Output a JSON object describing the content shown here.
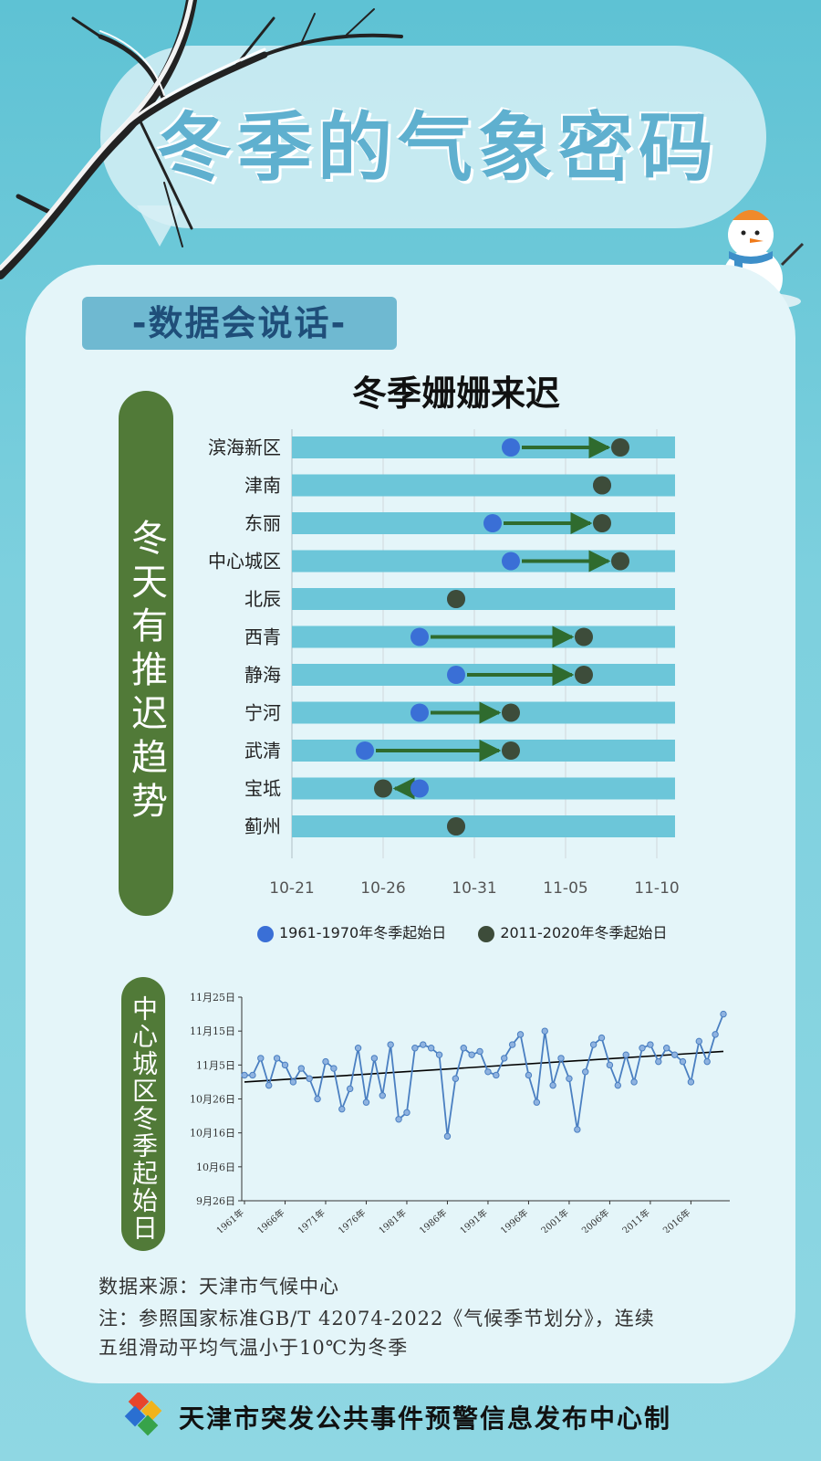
{
  "header": {
    "title": "冬季的气象密码"
  },
  "section_tag": "-数据会说话-",
  "side_label_1": "冬天有推迟趋势",
  "side_label_2": "中心城区冬季起始日",
  "chart_data": [
    {
      "type": "scatter",
      "title": "冬季姗姗来迟",
      "categories": [
        "滨海新区",
        "津南",
        "东丽",
        "中心城区",
        "北辰",
        "西青",
        "静海",
        "宁河",
        "武清",
        "宝坻",
        "蓟州"
      ],
      "x_ticks": [
        "10-21",
        "10-26",
        "10-31",
        "11-05",
        "11-10"
      ],
      "xlim": [
        "10-21",
        "11-11"
      ],
      "series": [
        {
          "name": "1961-1970年冬季起始日",
          "values": [
            "11-02",
            "11-07",
            "11-01",
            "11-02",
            "10-30",
            "10-28",
            "10-30",
            "10-28",
            "10-25",
            "10-28",
            "10-30"
          ],
          "color": "#3a6fd6"
        },
        {
          "name": "2011-2020年冬季起始日",
          "values": [
            "11-08",
            "11-07",
            "11-07",
            "11-08",
            "10-30",
            "11-06",
            "11-06",
            "11-02",
            "11-02",
            "10-26",
            "10-30"
          ],
          "color": "#3d4c3a"
        }
      ],
      "bar_color": "#6cc6d9",
      "arrow_color": "#2f6b2e",
      "grid": true
    },
    {
      "type": "line",
      "x_start_year": 1961,
      "x_end_year": 2020,
      "x_ticks": [
        "1961年",
        "1966年",
        "1971年",
        "1976年",
        "1981年",
        "1986年",
        "1991年",
        "1996年",
        "2001年",
        "2006年",
        "2011年",
        "2016年"
      ],
      "y_ticks": [
        "9月26日",
        "10月6日",
        "10月16日",
        "10月26日",
        "11月5日",
        "11月15日",
        "11月25日"
      ],
      "ylim": [
        "09-26",
        "11-25"
      ],
      "series": [
        {
          "values": [
            "11-02",
            "11-02",
            "11-07",
            "10-30",
            "11-07",
            "11-05",
            "10-31",
            "11-04",
            "11-01",
            "10-26",
            "11-06",
            "11-04",
            "10-23",
            "10-29",
            "11-10",
            "10-25",
            "11-07",
            "10-27",
            "11-11",
            "10-20",
            "10-22",
            "11-10",
            "11-11",
            "11-10",
            "11-08",
            "10-15",
            "11-01",
            "11-10",
            "11-08",
            "11-09",
            "11-03",
            "11-02",
            "11-07",
            "11-11",
            "11-14",
            "11-02",
            "10-25",
            "11-15",
            "10-30",
            "11-07",
            "11-01",
            "10-17",
            "11-03",
            "11-11",
            "11-13",
            "11-05",
            "10-30",
            "11-08",
            "10-31",
            "11-10",
            "11-11",
            "11-06",
            "11-10",
            "11-08",
            "11-06",
            "10-31",
            "11-12",
            "11-06",
            "11-14",
            "11-20"
          ],
          "color": "#4a7fc1"
        }
      ],
      "trend": {
        "start": "10-31",
        "end": "11-09",
        "color": "#000000"
      },
      "grid": false
    }
  ],
  "source_note": "数据来源：天津市气候中心",
  "standard_note_1": "注：参照国家标准GB/T 42074-2022《气候季节划分》，连续",
  "standard_note_2": "五组滑动平均气温小于10℃为冬季",
  "footer": {
    "organization": "天津市突发公共事件预警信息发布中心制"
  }
}
